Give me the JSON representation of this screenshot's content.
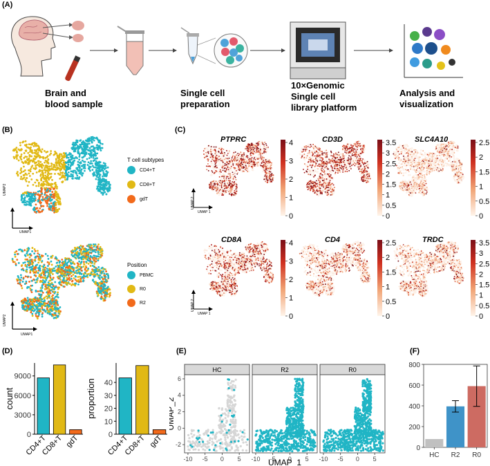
{
  "panel_labels": {
    "a": "(A)",
    "b": "(B)",
    "c": "(C)",
    "d": "(D)",
    "e": "(E)",
    "f": "(F)"
  },
  "workflow_steps": [
    {
      "line1": "Brain and",
      "line2": "blood sample",
      "line3": ""
    },
    {
      "line1": "Single cell",
      "line2": "preparation",
      "line3": ""
    },
    {
      "line1": "10×Genomic",
      "line2": "Single cell",
      "line3": "library platform"
    },
    {
      "line1": "Analysis and",
      "line2": "visualization",
      "line3": ""
    }
  ],
  "panel_b": {
    "umap_x": "UMAP1",
    "umap_y": "UMAP2",
    "legend_subtypes": {
      "title": "T cell subtypes",
      "items": [
        "CD4+T",
        "CD8+T",
        "gdT"
      ]
    },
    "legend_position": {
      "title": "Position",
      "items": [
        "PBMC",
        "R0",
        "R2"
      ]
    }
  },
  "colors": {
    "teal": "#20b5c5",
    "yellow": "#e1b915",
    "orange": "#f26a1b",
    "gray": "#c0c0c0",
    "blue": "#3f93c8",
    "red": "#cd6b62"
  },
  "panel_c": {
    "umap_x": "UMAP 1",
    "umap_y": "UMAP 2",
    "genes": [
      {
        "name": "PTPRC",
        "ticks": [
          "4",
          "3",
          "2",
          "1",
          "0"
        ]
      },
      {
        "name": "CD3D",
        "ticks": [
          "3.5",
          "3",
          "2.5",
          "2",
          "1.5",
          "1",
          "0.5",
          "0"
        ]
      },
      {
        "name": "SLC4A10",
        "ticks": [
          "2.5",
          "2",
          "1.5",
          "1",
          "0.5",
          "0"
        ]
      },
      {
        "name": "CD8A",
        "ticks": [
          "4",
          "3",
          "2",
          "1",
          "0"
        ]
      },
      {
        "name": "CD4",
        "ticks": [
          "2.5",
          "2",
          "1.5",
          "1",
          "0.5",
          "0"
        ]
      },
      {
        "name": "TRDC",
        "ticks": [
          "3.5",
          "3",
          "2.5",
          "2",
          "1.5",
          "1",
          "0.5",
          "0"
        ]
      }
    ]
  },
  "chart_data": [
    {
      "id": "d-count",
      "type": "bar",
      "categories": [
        "CD4+T",
        "CD8+T",
        "gdT"
      ],
      "values": [
        8700,
        10700,
        700
      ],
      "xlabel": "",
      "ylabel": "count",
      "ylim": [
        0,
        11000
      ],
      "yticks": [
        0,
        3000,
        6000,
        9000
      ]
    },
    {
      "id": "d-proportion",
      "type": "bar",
      "categories": [
        "CD4+T",
        "CD8+T",
        "gdT"
      ],
      "values": [
        43.5,
        53,
        3.5
      ],
      "xlabel": "",
      "ylabel": "proportion",
      "ylim": [
        0,
        55
      ],
      "yticks": [
        0,
        10,
        20,
        30,
        40
      ]
    },
    {
      "id": "e-umap",
      "type": "scatter",
      "facets": [
        "HC",
        "R2",
        "R0"
      ],
      "xlabel": "UMAP_1",
      "ylabel": "UMAP_2",
      "xticks": [
        -10,
        -5,
        0,
        5
      ],
      "yticks": [
        -2,
        0,
        2,
        4,
        6
      ],
      "xlim": [
        -11,
        8
      ],
      "ylim": [
        -3,
        6.5
      ]
    },
    {
      "id": "f-bar",
      "type": "bar",
      "categories": [
        "HC",
        "R2",
        "R0"
      ],
      "values": [
        80,
        395,
        590
      ],
      "error": [
        0,
        55,
        195
      ],
      "ylim": [
        0,
        800
      ],
      "yticks": [
        0,
        200,
        400,
        600,
        800
      ]
    }
  ]
}
